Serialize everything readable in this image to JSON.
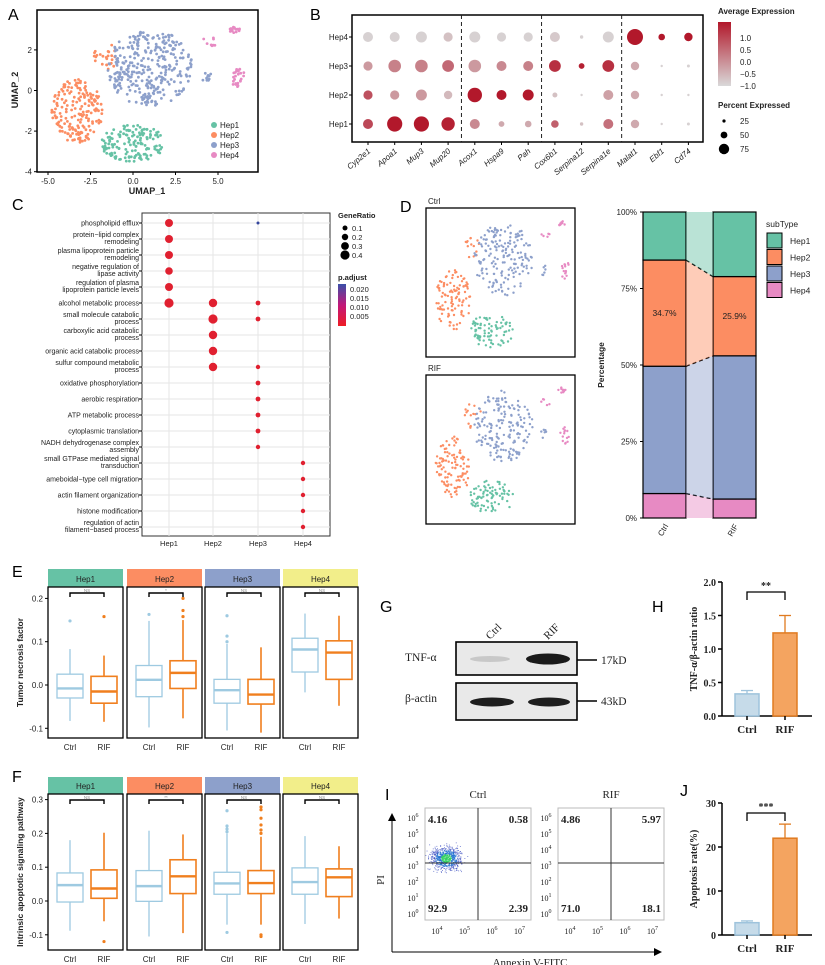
{
  "panel_letters": {
    "A": "A",
    "B": "B",
    "C": "C",
    "D": "D",
    "E": "E",
    "F": "F",
    "G": "G",
    "H": "H",
    "I": "I",
    "J": "J"
  },
  "colors": {
    "Hep1": "#66c2a5",
    "Hep2": "#fc8d62",
    "Hep3": "#8da0cb",
    "Hep4": "#e78ac3",
    "Ctrl_box": "#9ecae1",
    "RIF_box": "#f07f1e",
    "Hep4_strip": "#f2ee8a",
    "bar_ctrl": "#c6dbe9",
    "bar_rif": "#f4a460"
  },
  "chart_data": [
    {
      "id": "A",
      "type": "scatter",
      "xlabel": "UMAP_1",
      "ylabel": "UMAP_2",
      "xticks": [
        "-5.0",
        "-2.5",
        "0.0",
        "2.5",
        "5.0"
      ],
      "xtick_values": [
        -5,
        -2.5,
        0,
        2.5,
        5
      ],
      "yticks": [
        "-4",
        "-2",
        "0",
        "2"
      ],
      "ytick_values": [
        -4,
        -2,
        0,
        2
      ],
      "xlim": [
        -5.7,
        7.3
      ],
      "ylim": [
        -4,
        3.9
      ],
      "legend": [
        "Hep1",
        "Hep2",
        "Hep3",
        "Hep4"
      ],
      "legend_position": "bottom-right"
    },
    {
      "id": "B",
      "type": "dotplot",
      "rows": [
        "Hep1",
        "Hep2",
        "Hep3",
        "Hep4"
      ],
      "genes": [
        "Cyp2e1",
        "Apoa1",
        "Mup3",
        "Mup20",
        "Acox1",
        "Hspa9",
        "Pah",
        "Cox6b1",
        "Serpina12",
        "Serpina1e",
        "Malat1",
        "Ebf1",
        "Cd74"
      ],
      "group_breaks_after": [
        3,
        6,
        9
      ],
      "avg_expression": {
        "Hep1": [
          0.7,
          1.3,
          1.3,
          1.2,
          -0.1,
          -0.5,
          -0.5,
          0.4,
          -0.8,
          0.2,
          -0.5,
          -1.0,
          -1.0
        ],
        "Hep2": [
          0.6,
          -0.3,
          -0.3,
          -0.7,
          1.3,
          1.3,
          1.3,
          -0.8,
          -1.0,
          -0.4,
          -0.5,
          -1.0,
          -1.0
        ],
        "Hep3": [
          -0.3,
          0.0,
          0.0,
          0.3,
          -0.3,
          -0.1,
          0.0,
          1.0,
          1.2,
          1.0,
          -0.5,
          -1.0,
          -1.0
        ],
        "Hep4": [
          -1.0,
          -1.0,
          -1.0,
          -0.8,
          -1.0,
          -1.0,
          -1.0,
          -0.9,
          -1.0,
          -1.0,
          1.3,
          1.3,
          1.3
        ]
      },
      "percent_expressed": {
        "Hep1": [
          50,
          80,
          80,
          70,
          50,
          25,
          30,
          35,
          10,
          50,
          40,
          5,
          8
        ],
        "Hep2": [
          45,
          45,
          55,
          40,
          75,
          50,
          55,
          20,
          5,
          50,
          40,
          5,
          5
        ],
        "Hep3": [
          45,
          65,
          65,
          60,
          65,
          50,
          50,
          60,
          25,
          60,
          40,
          5,
          8
        ],
        "Hep4": [
          50,
          50,
          55,
          45,
          55,
          45,
          45,
          50,
          10,
          55,
          85,
          30,
          40
        ]
      },
      "color_legend_title": "Average Expression",
      "color_ticks": [
        "1.0",
        "0.5",
        "0.0",
        "−0.5",
        "−1.0"
      ],
      "size_legend_title": "Percent Expressed",
      "size_ticks": [
        "25",
        "50",
        "75"
      ],
      "color_low": "#d9d9d9",
      "color_high": "#b2182b"
    },
    {
      "id": "C",
      "type": "dotplot",
      "terms": [
        [
          "phospholipid efflux"
        ],
        [
          "protein−lipid complex",
          "remodeling"
        ],
        [
          "plasma lipoprotein particle",
          "remodeling"
        ],
        [
          "negative regulation of",
          "lipase activity"
        ],
        [
          "regulation of plasma",
          "lipoprotein particle levels"
        ],
        [
          "alcohol metabolic process"
        ],
        [
          "small molecule catabolic",
          "process"
        ],
        [
          "carboxylic acid catabolic",
          "process"
        ],
        [
          "organic acid catabolic process"
        ],
        [
          "sulfur compound metabolic",
          "process"
        ],
        [
          "oxidative phosphorylation"
        ],
        [
          "aerobic respiration"
        ],
        [
          "ATP metabolic process"
        ],
        [
          "cytoplasmic translation"
        ],
        [
          "NADH dehydrogenase complex",
          "assembly"
        ],
        [
          "small GTPase mediated signal",
          "transduction"
        ],
        [
          "ameboidal−type cell migration"
        ],
        [
          "actin filament organization"
        ],
        [
          "histone modification"
        ],
        [
          "regulation of actin",
          "filament−based process"
        ]
      ],
      "clusters": [
        "Hep1",
        "Hep2",
        "Hep3",
        "Hep4"
      ],
      "points": [
        {
          "term": 0,
          "cluster": "Hep1",
          "gene_ratio": 0.35,
          "p_adjust": 0.001
        },
        {
          "term": 1,
          "cluster": "Hep1",
          "gene_ratio": 0.35,
          "p_adjust": 0.001
        },
        {
          "term": 2,
          "cluster": "Hep1",
          "gene_ratio": 0.35,
          "p_adjust": 0.001
        },
        {
          "term": 3,
          "cluster": "Hep1",
          "gene_ratio": 0.32,
          "p_adjust": 0.001
        },
        {
          "term": 4,
          "cluster": "Hep1",
          "gene_ratio": 0.35,
          "p_adjust": 0.001
        },
        {
          "term": 5,
          "cluster": "Hep1",
          "gene_ratio": 0.42,
          "p_adjust": 0.001
        },
        {
          "term": 5,
          "cluster": "Hep2",
          "gene_ratio": 0.38,
          "p_adjust": 0.001
        },
        {
          "term": 6,
          "cluster": "Hep2",
          "gene_ratio": 0.42,
          "p_adjust": 0.001
        },
        {
          "term": 7,
          "cluster": "Hep2",
          "gene_ratio": 0.38,
          "p_adjust": 0.001
        },
        {
          "term": 8,
          "cluster": "Hep2",
          "gene_ratio": 0.38,
          "p_adjust": 0.001
        },
        {
          "term": 9,
          "cluster": "Hep2",
          "gene_ratio": 0.38,
          "p_adjust": 0.001
        },
        {
          "term": 0,
          "cluster": "Hep3",
          "gene_ratio": 0.04,
          "p_adjust": 0.022
        },
        {
          "term": 5,
          "cluster": "Hep3",
          "gene_ratio": 0.15,
          "p_adjust": 0.002
        },
        {
          "term": 6,
          "cluster": "Hep3",
          "gene_ratio": 0.15,
          "p_adjust": 0.002
        },
        {
          "term": 9,
          "cluster": "Hep3",
          "gene_ratio": 0.13,
          "p_adjust": 0.002
        },
        {
          "term": 10,
          "cluster": "Hep3",
          "gene_ratio": 0.15,
          "p_adjust": 0.001
        },
        {
          "term": 11,
          "cluster": "Hep3",
          "gene_ratio": 0.15,
          "p_adjust": 0.001
        },
        {
          "term": 12,
          "cluster": "Hep3",
          "gene_ratio": 0.15,
          "p_adjust": 0.001
        },
        {
          "term": 13,
          "cluster": "Hep3",
          "gene_ratio": 0.15,
          "p_adjust": 0.001
        },
        {
          "term": 14,
          "cluster": "Hep3",
          "gene_ratio": 0.13,
          "p_adjust": 0.002
        },
        {
          "term": 15,
          "cluster": "Hep4",
          "gene_ratio": 0.12,
          "p_adjust": 0.002
        },
        {
          "term": 16,
          "cluster": "Hep4",
          "gene_ratio": 0.12,
          "p_adjust": 0.002
        },
        {
          "term": 17,
          "cluster": "Hep4",
          "gene_ratio": 0.12,
          "p_adjust": 0.002
        },
        {
          "term": 18,
          "cluster": "Hep4",
          "gene_ratio": 0.12,
          "p_adjust": 0.002
        },
        {
          "term": 19,
          "cluster": "Hep4",
          "gene_ratio": 0.12,
          "p_adjust": 0.002
        }
      ],
      "size_legend_title": "GeneRatio",
      "size_ticks": [
        "0.1",
        "0.2",
        "0.3",
        "0.4"
      ],
      "color_legend_title": "p.adjust",
      "color_ticks": [
        "0.020",
        "0.015",
        "0.010",
        "0.005"
      ]
    },
    {
      "id": "D_umap",
      "type": "scatter",
      "facets": [
        "Ctrl",
        "RIF"
      ]
    },
    {
      "id": "D_bar",
      "type": "bar",
      "stacked": true,
      "categories": [
        "Ctrl",
        "RIF"
      ],
      "ylabel": "Percentage",
      "yticks": [
        "0%",
        "25%",
        "50%",
        "75%",
        "100%"
      ],
      "series": [
        {
          "name": "Hep4",
          "values": [
            8.0,
            6.2
          ]
        },
        {
          "name": "Hep3",
          "values": [
            41.6,
            46.8
          ]
        },
        {
          "name": "Hep2",
          "values": [
            34.7,
            25.9
          ]
        },
        {
          "name": "Hep1",
          "values": [
            15.7,
            21.1
          ]
        }
      ],
      "data_labels": [
        "34.7%",
        "25.9%"
      ],
      "legend_title": "subType",
      "legend": [
        "Hep1",
        "Hep2",
        "Hep3",
        "Hep4"
      ],
      "legend_position": "right"
    },
    {
      "id": "E",
      "type": "box",
      "ylabel": "Tumor necrosis factor",
      "yticks": [
        "-0.1",
        "0.0",
        "0.1",
        "0.2"
      ],
      "ytick_values": [
        -0.1,
        0,
        0.1,
        0.2
      ],
      "ylim": [
        -0.12,
        0.225
      ],
      "facets": [
        "Hep1",
        "Hep2",
        "Hep3",
        "Hep4"
      ],
      "categories": [
        "Ctrl",
        "RIF"
      ],
      "significance": [
        "NS",
        "*",
        "NS",
        "NS"
      ],
      "boxes": {
        "Hep1": [
          {
            "q1": -0.03,
            "median": -0.008,
            "q3": 0.025,
            "lo": -0.083,
            "hi": 0.083,
            "outliers": [
              0.148
            ]
          },
          {
            "q1": -0.042,
            "median": -0.015,
            "q3": 0.02,
            "lo": -0.085,
            "hi": 0.068,
            "outliers": [
              0.158
            ]
          }
        ],
        "Hep2": [
          {
            "q1": -0.027,
            "median": 0.012,
            "q3": 0.045,
            "lo": -0.098,
            "hi": 0.148,
            "outliers": [
              0.163
            ]
          },
          {
            "q1": -0.008,
            "median": 0.028,
            "q3": 0.056,
            "lo": -0.077,
            "hi": 0.15,
            "outliers": [
              0.158,
              0.172,
              0.2
            ]
          }
        ],
        "Hep3": [
          {
            "q1": -0.042,
            "median": -0.012,
            "q3": 0.013,
            "lo": -0.105,
            "hi": 0.095,
            "outliers": [
              0.1,
              0.113,
              0.16
            ]
          },
          {
            "q1": -0.044,
            "median": -0.022,
            "q3": 0.013,
            "lo": -0.11,
            "hi": 0.087,
            "outliers": []
          }
        ],
        "Hep4": [
          {
            "q1": 0.03,
            "median": 0.082,
            "q3": 0.108,
            "lo": -0.017,
            "hi": 0.165,
            "outliers": []
          },
          {
            "q1": 0.013,
            "median": 0.075,
            "q3": 0.102,
            "lo": -0.048,
            "hi": 0.16,
            "outliers": []
          }
        ]
      }
    },
    {
      "id": "F",
      "type": "box",
      "ylabel": "Intrinsic apoptotic signaling pathway",
      "yticks": [
        "-0.1",
        "0.0",
        "0.1",
        "0.2",
        "0.3"
      ],
      "ytick_values": [
        -0.1,
        0,
        0.1,
        0.2,
        0.3
      ],
      "ylim": [
        -0.13,
        0.31
      ],
      "facets": [
        "Hep1",
        "Hep2",
        "Hep3",
        "Hep4"
      ],
      "categories": [
        "Ctrl",
        "RIF"
      ],
      "significance": [
        "NS",
        "**",
        "NS",
        "NS"
      ],
      "boxes": {
        "Hep1": [
          {
            "q1": -0.003,
            "median": 0.047,
            "q3": 0.083,
            "lo": -0.088,
            "hi": 0.18,
            "outliers": []
          },
          {
            "q1": 0.008,
            "median": 0.037,
            "q3": 0.092,
            "lo": -0.06,
            "hi": 0.202,
            "outliers": [
              -0.12
            ]
          }
        ],
        "Hep2": [
          {
            "q1": -0.001,
            "median": 0.044,
            "q3": 0.09,
            "lo": -0.105,
            "hi": 0.208,
            "outliers": []
          },
          {
            "q1": 0.022,
            "median": 0.073,
            "q3": 0.122,
            "lo": -0.095,
            "hi": 0.197,
            "outliers": []
          }
        ],
        "Hep3": [
          {
            "q1": 0.02,
            "median": 0.052,
            "q3": 0.085,
            "lo": -0.07,
            "hi": 0.2,
            "outliers": [
              -0.093,
              0.205,
              0.213,
              0.222,
              0.267
            ]
          },
          {
            "q1": 0.022,
            "median": 0.053,
            "q3": 0.09,
            "lo": -0.07,
            "hi": 0.19,
            "outliers": [
              -0.1,
              -0.105,
              0.2,
              0.21,
              0.225,
              0.245,
              0.27,
              0.278
            ]
          }
        ],
        "Hep4": [
          {
            "q1": 0.02,
            "median": 0.056,
            "q3": 0.098,
            "lo": -0.068,
            "hi": 0.192,
            "outliers": []
          },
          {
            "q1": 0.013,
            "median": 0.07,
            "q3": 0.095,
            "lo": -0.052,
            "hi": 0.162,
            "outliers": []
          }
        ]
      }
    },
    {
      "id": "H",
      "type": "bar",
      "categories": [
        "Ctrl",
        "RIF"
      ],
      "values": [
        0.33,
        1.24
      ],
      "errors": [
        0.05,
        0.26
      ],
      "ylabel": "TNF-α/β-actin ratio",
      "yticks": [
        "0.0",
        "0.5",
        "1.0",
        "1.5",
        "2.0"
      ],
      "ylim": [
        0,
        2.0
      ],
      "significance": "**"
    },
    {
      "id": "I",
      "type": "scatter",
      "facets": [
        {
          "title": "Ctrl",
          "quadrants": {
            "UL": "4.16",
            "UR": "0.58",
            "LL": "92.9",
            "LR": "2.39"
          }
        },
        {
          "title": "RIF",
          "quadrants": {
            "UL": "4.86",
            "UR": "5.97",
            "LL": "71.0",
            "LR": "18.1"
          }
        }
      ],
      "xlabel": "Annexin V-FITC",
      "ylabel": "PI",
      "xtick_exponents": [
        "4",
        "5",
        "6",
        "7"
      ],
      "ytick_exponents": [
        "6",
        "5",
        "4",
        "3",
        "2",
        "1",
        "0"
      ],
      "tick_base": "10"
    },
    {
      "id": "J",
      "type": "bar",
      "categories": [
        "Ctrl",
        "RIF"
      ],
      "values": [
        2.8,
        22.0
      ],
      "errors": [
        0.4,
        3.2
      ],
      "ylabel": "Apoptosis rate(%)",
      "yticks": [
        "0",
        "10",
        "20",
        "30"
      ],
      "ylim": [
        0,
        30
      ],
      "significance": "***"
    }
  ],
  "western_blot": {
    "lanes": [
      "Ctrl",
      "RIF"
    ],
    "bands": [
      {
        "label": "TNF-α",
        "size": "17kD"
      },
      {
        "label": "β-actin",
        "size": "43kD"
      }
    ]
  }
}
